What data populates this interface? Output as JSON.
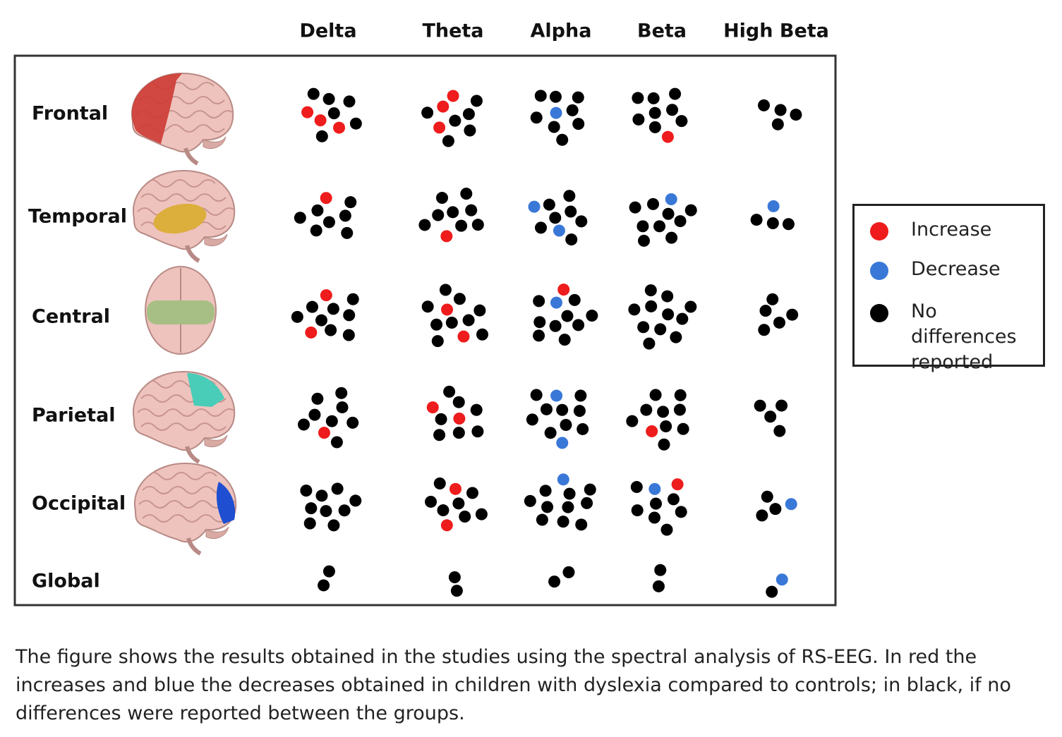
{
  "columns": [
    "Delta",
    "Theta",
    "Alpha",
    "Beta",
    "High Beta"
  ],
  "rows": [
    {
      "label": "Frontal",
      "cells": [
        {
          "increase": 3,
          "none": 6
        },
        {
          "increase": 3,
          "none": 6
        },
        {
          "decrease": 1,
          "none": 8
        },
        {
          "increase": 1,
          "none": 8
        },
        {
          "none": 4
        }
      ]
    },
    {
      "label": "Temporal",
      "cells": [
        {
          "increase": 1,
          "none": 7
        },
        {
          "increase": 1,
          "none": 8
        },
        {
          "decrease": 2,
          "none": 7
        },
        {
          "decrease": 1,
          "none": 9
        },
        {
          "decrease": 1,
          "none": 3
        }
      ]
    },
    {
      "label": "Central",
      "cells": [
        {
          "increase": 2,
          "none": 8
        },
        {
          "increase": 2,
          "none": 9
        },
        {
          "increase": 1,
          "decrease": 1,
          "none": 9
        },
        {
          "none": 11
        },
        {
          "none": 5
        }
      ]
    },
    {
      "label": "Parietal",
      "cells": [
        {
          "increase": 1,
          "none": 8
        },
        {
          "increase": 2,
          "none": 7
        },
        {
          "decrease": 2,
          "none": 9
        },
        {
          "increase": 1,
          "none": 9
        },
        {
          "none": 4
        }
      ]
    },
    {
      "label": "Occipital",
      "cells": [
        {
          "none": 9
        },
        {
          "increase": 2,
          "none": 7
        },
        {
          "decrease": 1,
          "none": 10
        },
        {
          "increase": 1,
          "decrease": 1,
          "none": 7
        },
        {
          "decrease": 1,
          "none": 3
        }
      ]
    },
    {
      "label": "Global",
      "cells": [
        {
          "none": 2
        },
        {
          "none": 2
        },
        {
          "none": 2
        },
        {
          "none": 2
        },
        {
          "decrease": 1,
          "none": 1
        }
      ]
    }
  ],
  "legend": {
    "increase": {
      "label": "Increase",
      "color": "#ee1c1c"
    },
    "decrease": {
      "label": "Decrease",
      "color": "#3a78d8"
    },
    "none": {
      "label": "No differences reported",
      "color": "#000000"
    }
  },
  "caption": "The figure shows the results obtained in the studies using the spectral analysis of RS-EEG. In red the increases and blue the decreases obtained in children with dyslexia compared to controls; in black, if no differences were reported between the groups."
}
